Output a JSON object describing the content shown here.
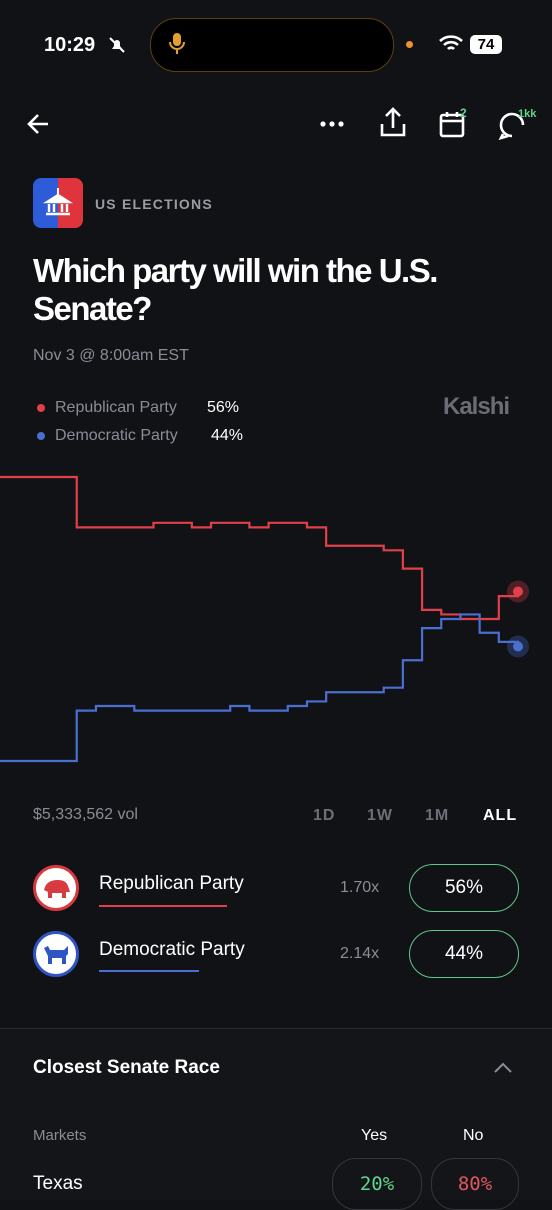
{
  "status_bar": {
    "time": "10:29",
    "battery": "74"
  },
  "nav": {
    "calendar_badge": "2",
    "comment_badge": "1kk"
  },
  "header": {
    "category": "US ELECTIONS",
    "title": "Which party will win the U.S. Senate?",
    "date": "Nov 3 @ 8:00am EST",
    "brand": "Kalshi"
  },
  "legend": [
    {
      "name": "Republican Party",
      "value": "56%"
    },
    {
      "name": "Democratic Party",
      "value": "44%"
    }
  ],
  "chart_data": {
    "type": "line",
    "ylim": [
      0,
      100
    ],
    "series": [
      {
        "name": "Republican Party",
        "color": "#e0404a",
        "values": [
          81,
          81,
          81,
          81,
          70,
          70,
          70,
          70,
          71,
          71,
          70,
          71,
          71,
          70,
          71,
          71,
          70,
          66,
          66,
          66,
          65,
          61,
          52,
          51,
          50,
          50,
          55,
          56
        ]
      },
      {
        "name": "Democratic Party",
        "color": "#4a6fd0",
        "values": [
          19,
          19,
          19,
          19,
          30,
          31,
          31,
          30,
          30,
          30,
          30,
          30,
          31,
          30,
          30,
          31,
          32,
          34,
          34,
          34,
          35,
          41,
          48,
          50,
          51,
          47,
          45,
          44
        ]
      }
    ]
  },
  "volume": "$5,333,562 vol",
  "ranges": [
    "1D",
    "1W",
    "1M",
    "ALL"
  ],
  "outcomes": [
    {
      "name": "Republican Party",
      "multiplier": "1.70x",
      "price": "56%"
    },
    {
      "name": "Democratic Party",
      "multiplier": "2.14x",
      "price": "44%"
    }
  ],
  "section": {
    "title": "Closest Senate Race",
    "columns": [
      "Markets",
      "Yes",
      "No"
    ],
    "rows": [
      {
        "market": "Texas",
        "yes": "20%",
        "no": "80%"
      }
    ]
  }
}
